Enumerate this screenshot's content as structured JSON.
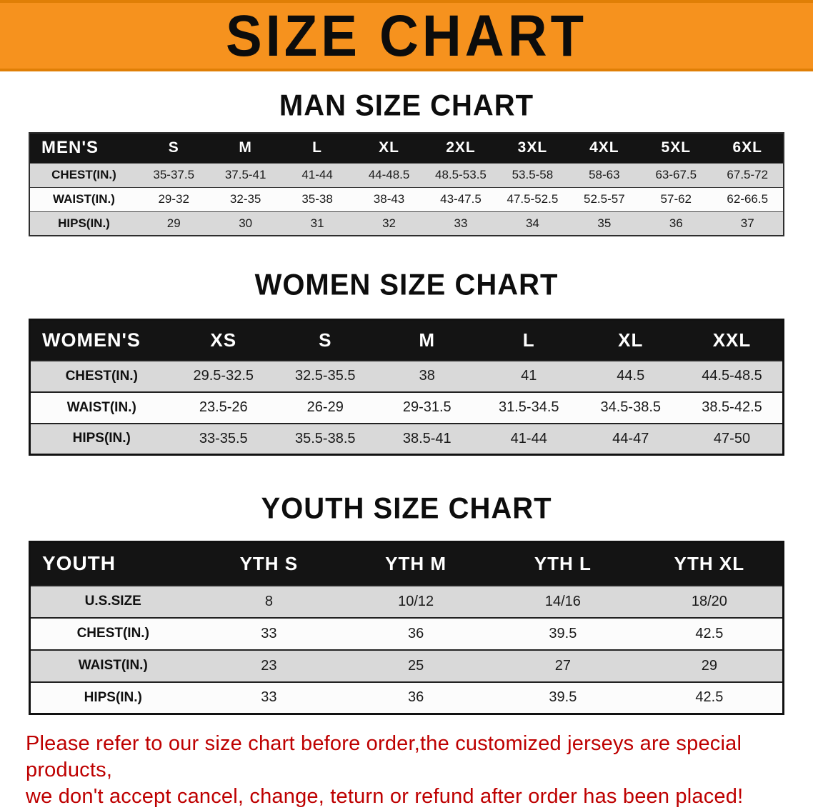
{
  "banner": {
    "title": "SIZE CHART",
    "bg_color": "#F6921E"
  },
  "sections": {
    "men": {
      "heading": "MAN SIZE CHART",
      "table": {
        "header": [
          "MEN'S",
          "S",
          "M",
          "L",
          "XL",
          "2XL",
          "3XL",
          "4XL",
          "5XL",
          "6XL"
        ],
        "rows": [
          [
            "CHEST(IN.)",
            "35-37.5",
            "37.5-41",
            "41-44",
            "44-48.5",
            "48.5-53.5",
            "53.5-58",
            "58-63",
            "63-67.5",
            "67.5-72"
          ],
          [
            "WAIST(IN.)",
            "29-32",
            "32-35",
            "35-38",
            "38-43",
            "43-47.5",
            "47.5-52.5",
            "52.5-57",
            "57-62",
            "62-66.5"
          ],
          [
            "HIPS(IN.)",
            "29",
            "30",
            "31",
            "32",
            "33",
            "34",
            "35",
            "36",
            "37"
          ]
        ]
      }
    },
    "women": {
      "heading": "WOMEN SIZE CHART",
      "table": {
        "header": [
          "WOMEN'S",
          "XS",
          "S",
          "M",
          "L",
          "XL",
          "XXL"
        ],
        "rows": [
          [
            "CHEST(IN.)",
            "29.5-32.5",
            "32.5-35.5",
            "38",
            "41",
            "44.5",
            "44.5-48.5"
          ],
          [
            "WAIST(IN.)",
            "23.5-26",
            "26-29",
            "29-31.5",
            "31.5-34.5",
            "34.5-38.5",
            "38.5-42.5"
          ],
          [
            "HIPS(IN.)",
            "33-35.5",
            "35.5-38.5",
            "38.5-41",
            "41-44",
            "44-47",
            "47-50"
          ]
        ]
      }
    },
    "youth": {
      "heading": "YOUTH SIZE CHART",
      "table": {
        "header": [
          "YOUTH",
          "YTH S",
          "YTH M",
          "YTH L",
          "YTH XL"
        ],
        "rows": [
          [
            "U.S.SIZE",
            "8",
            "10/12",
            "14/16",
            "18/20"
          ],
          [
            "CHEST(IN.)",
            "33",
            "36",
            "39.5",
            "42.5"
          ],
          [
            "WAIST(IN.)",
            "23",
            "25",
            "27",
            "29"
          ],
          [
            "HIPS(IN.)",
            "33",
            "36",
            "39.5",
            "42.5"
          ]
        ]
      }
    }
  },
  "disclaimer": {
    "color": "#BE0000",
    "lines": [
      "Please refer to our size chart before order,the customized jerseys are special products,",
      "we don't accept cancel, change, teturn or refund after order has been placed!"
    ]
  }
}
